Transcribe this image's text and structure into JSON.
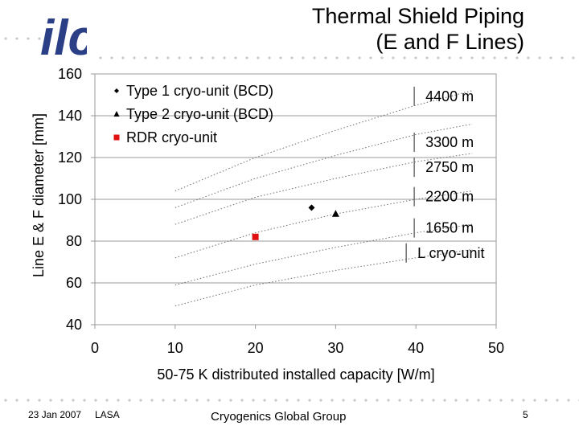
{
  "slide": {
    "title_line1": "Thermal Shield Piping",
    "title_line2": "(E and F Lines)",
    "logo_text": "ilc",
    "footer": {
      "date": "23 Jan 2007",
      "location": "LASA",
      "group": "Cryogenics Global Group",
      "page": "5"
    }
  },
  "chart_data": {
    "type": "scatter",
    "title": "",
    "xlabel": "50-75 K distributed installed capacity [W/m]",
    "ylabel": "Line E & F diameter [mm]",
    "xlim": [
      0,
      50
    ],
    "ylim": [
      40,
      160
    ],
    "xticks": [
      0,
      10,
      20,
      30,
      40,
      50
    ],
    "yticks": [
      40,
      60,
      80,
      100,
      120,
      140,
      160
    ],
    "grid": "horizontal",
    "legend_position": "top-left",
    "series": [
      {
        "name": "Type 1 cryo-unit (BCD)",
        "marker": "diamond",
        "color": "#000000",
        "points": [
          {
            "x": 27,
            "y": 96
          }
        ]
      },
      {
        "name": "Type 2 cryo-unit (BCD)",
        "marker": "triangle",
        "color": "#000000",
        "points": [
          {
            "x": 30,
            "y": 93
          }
        ]
      },
      {
        "name": "RDR cryo-unit",
        "marker": "square",
        "color": "#e01010",
        "points": [
          {
            "x": 20,
            "y": 82
          }
        ]
      }
    ],
    "curves": [
      {
        "label": "4400 m",
        "x": [
          10,
          20,
          30,
          40,
          47
        ],
        "y": [
          104,
          120,
          133,
          145,
          152
        ]
      },
      {
        "label": "3300 m",
        "x": [
          10,
          20,
          30,
          40,
          47
        ],
        "y": [
          96,
          110,
          121,
          131,
          136
        ]
      },
      {
        "label": "2750 m",
        "x": [
          10,
          20,
          30,
          40,
          47
        ],
        "y": [
          88,
          101,
          110,
          118,
          122
        ]
      },
      {
        "label": "2200 m",
        "x": [
          10,
          20,
          30,
          40,
          47
        ],
        "y": [
          72,
          84,
          93,
          100,
          104
        ]
      },
      {
        "label": "1650 m",
        "x": [
          10,
          20,
          30,
          40,
          47
        ],
        "y": [
          59,
          69,
          77,
          84,
          88
        ]
      },
      {
        "label": "",
        "x": [
          10,
          20,
          30,
          40,
          47
        ],
        "y": [
          49,
          59,
          66,
          72,
          76
        ]
      }
    ],
    "annotations": [
      {
        "text": "4400 m",
        "x": 43,
        "y": 147
      },
      {
        "text": "3300 m",
        "x": 43,
        "y": 125
      },
      {
        "text": "2750 m",
        "x": 43,
        "y": 113
      },
      {
        "text": "2200 m",
        "x": 43,
        "y": 99
      },
      {
        "text": "1650 m",
        "x": 43,
        "y": 84
      },
      {
        "text": "L cryo-unit",
        "x": 42,
        "y": 72
      }
    ]
  }
}
